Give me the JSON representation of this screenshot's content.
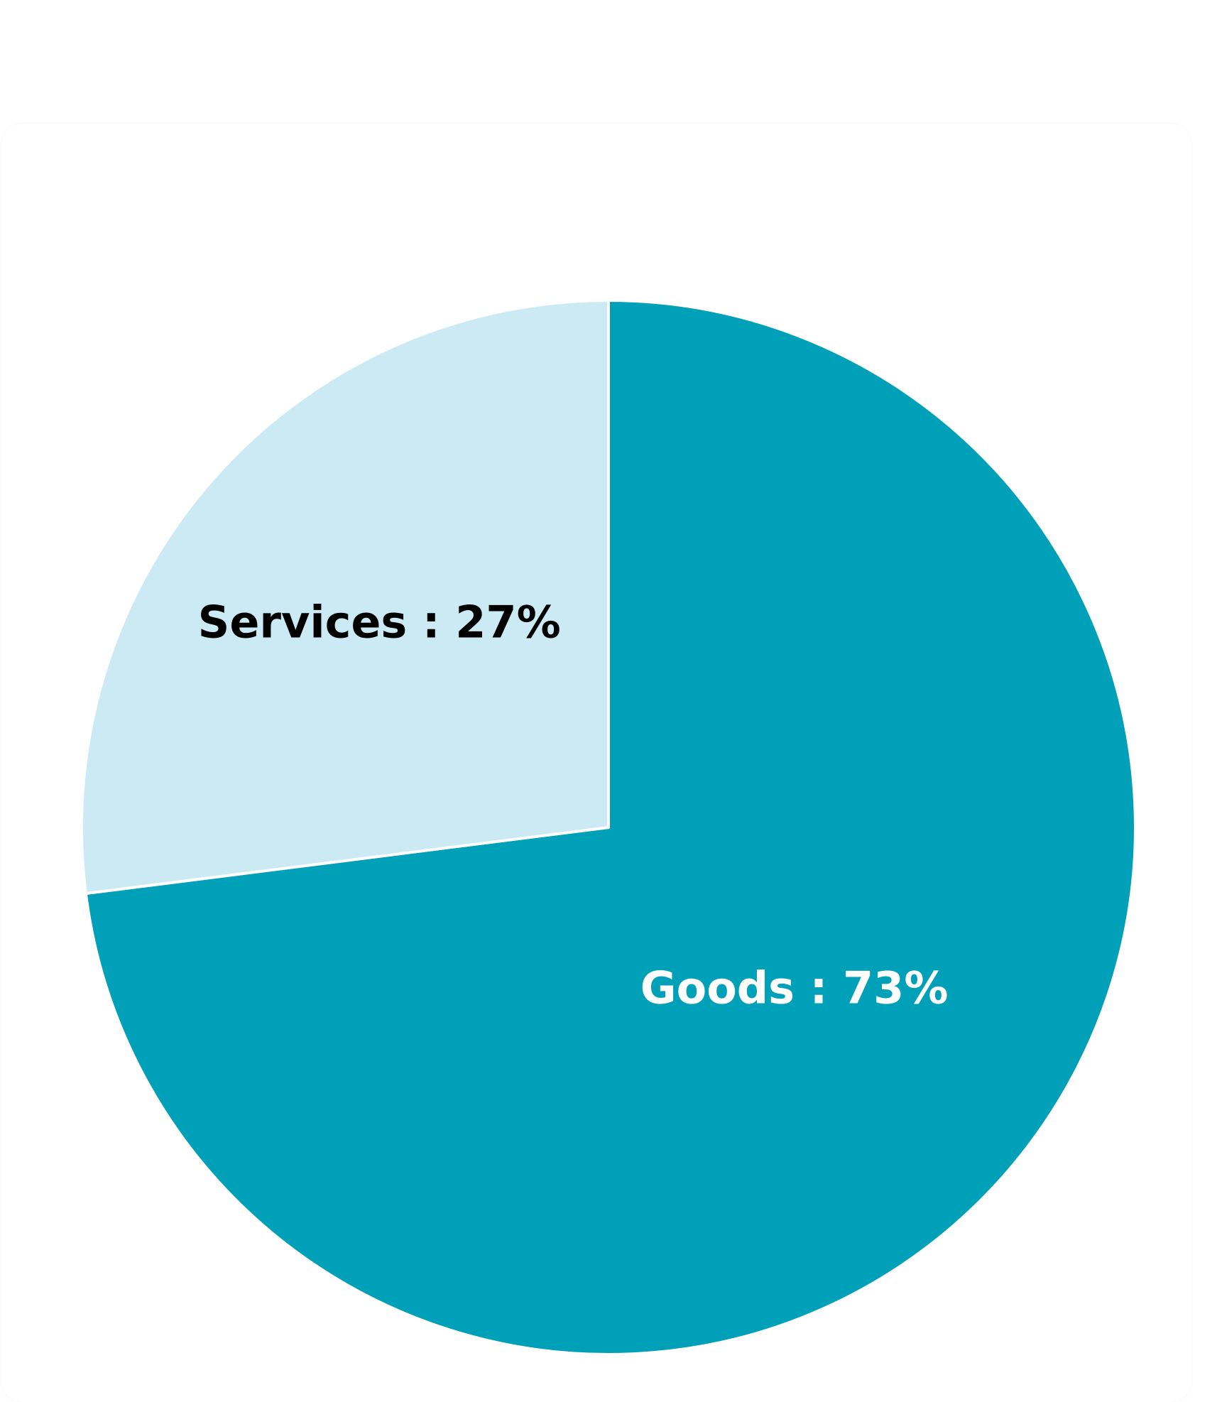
{
  "chart_data": {
    "type": "pie",
    "title": "",
    "slices": [
      {
        "name": "Goods",
        "value": 73,
        "label": "Goods : 73%",
        "color": "#00a0b9",
        "label_color": "#ffffff"
      },
      {
        "name": "Services",
        "value": 27,
        "label": "Services : 27%",
        "color": "#cbeaf3",
        "label_color": "#000000"
      }
    ],
    "legend": "none",
    "start": "top",
    "direction": "clockwise"
  }
}
